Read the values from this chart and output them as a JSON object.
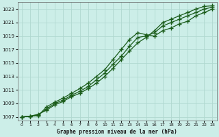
{
  "title": "Graphe pression niveau de la mer (hPa)",
  "bg_color": "#cceee8",
  "line_color": "#1a5c1a",
  "grid_color": "#b0d8d0",
  "xlim": [
    -0.5,
    23.5
  ],
  "ylim": [
    1006.5,
    1024.0
  ],
  "yticks": [
    1007,
    1009,
    1011,
    1013,
    1015,
    1017,
    1019,
    1021,
    1023
  ],
  "xticks": [
    0,
    1,
    2,
    3,
    4,
    5,
    6,
    7,
    8,
    9,
    10,
    11,
    12,
    13,
    14,
    15,
    16,
    17,
    18,
    19,
    20,
    21,
    22,
    23
  ],
  "series": [
    [
      1007.0,
      1007.1,
      1007.2,
      1008.5,
      1009.2,
      1009.8,
      1010.5,
      1011.2,
      1012.0,
      1013.0,
      1014.0,
      1015.5,
      1017.0,
      1018.5,
      1019.5,
      1019.2,
      1019.0,
      1019.8,
      1020.2,
      1020.8,
      1021.2,
      1022.0,
      1022.5,
      1023.0
    ],
    [
      1007.0,
      1007.1,
      1007.3,
      1008.2,
      1009.0,
      1009.5,
      1010.2,
      1010.8,
      1011.5,
      1012.5,
      1013.5,
      1014.8,
      1016.0,
      1017.5,
      1018.8,
      1019.0,
      1019.5,
      1020.5,
      1021.0,
      1021.5,
      1022.0,
      1022.5,
      1023.0,
      1023.3
    ],
    [
      1007.0,
      1007.1,
      1007.4,
      1008.0,
      1008.8,
      1009.3,
      1010.0,
      1010.5,
      1011.2,
      1012.0,
      1013.0,
      1014.2,
      1015.5,
      1016.8,
      1018.0,
      1018.8,
      1019.8,
      1021.0,
      1021.5,
      1022.0,
      1022.5,
      1023.0,
      1023.4,
      1023.5
    ]
  ]
}
